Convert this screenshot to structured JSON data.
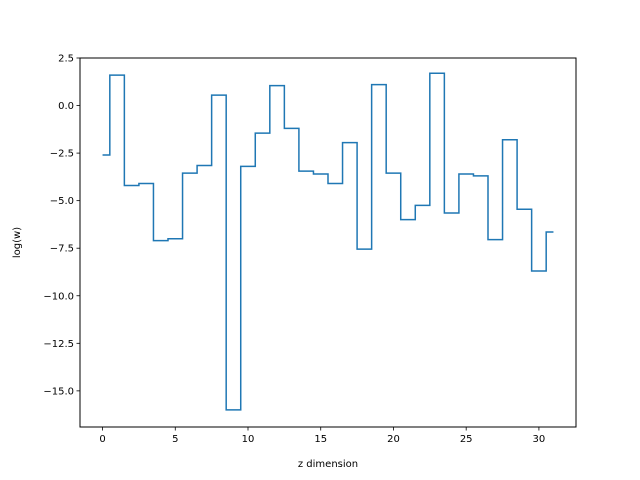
{
  "chart_data": {
    "type": "line",
    "drawstyle": "steps-mid",
    "title": "",
    "xlabel": "z dimension",
    "ylabel": "log(w)",
    "xlim": [
      -1.55,
      32.55
    ],
    "ylim": [
      -16.9,
      2.5
    ],
    "xticks": [
      0,
      5,
      10,
      15,
      20,
      25,
      30
    ],
    "xtick_labels": [
      "0",
      "5",
      "10",
      "15",
      "20",
      "25",
      "30"
    ],
    "yticks": [
      2.5,
      0.0,
      -2.5,
      -5.0,
      -7.5,
      -10.0,
      -12.5,
      -15.0
    ],
    "ytick_labels": [
      "2.5",
      "0.0",
      "−2.5",
      "−5.0",
      "−7.5",
      "−10.0",
      "−12.5",
      "−15.0"
    ],
    "grid": false,
    "legend": false,
    "color": "#1f77b4",
    "x": [
      0,
      1,
      2,
      3,
      4,
      5,
      6,
      7,
      8,
      9,
      10,
      11,
      12,
      13,
      14,
      15,
      16,
      17,
      18,
      19,
      20,
      21,
      22,
      23,
      24,
      25,
      26,
      27,
      28,
      29,
      30,
      31
    ],
    "series": [
      {
        "values": [
          -2.6,
          1.6,
          -4.2,
          -4.1,
          -7.1,
          -7.0,
          -3.55,
          -3.15,
          0.55,
          -16.0,
          -3.2,
          -1.45,
          1.05,
          -1.2,
          -3.45,
          -3.6,
          -4.1,
          -1.95,
          -7.55,
          1.1,
          -3.55,
          -6.0,
          -5.25,
          1.7,
          -5.65,
          -3.6,
          -3.7,
          -7.05,
          -1.8,
          -5.45,
          -8.7,
          -6.65
        ]
      }
    ]
  }
}
